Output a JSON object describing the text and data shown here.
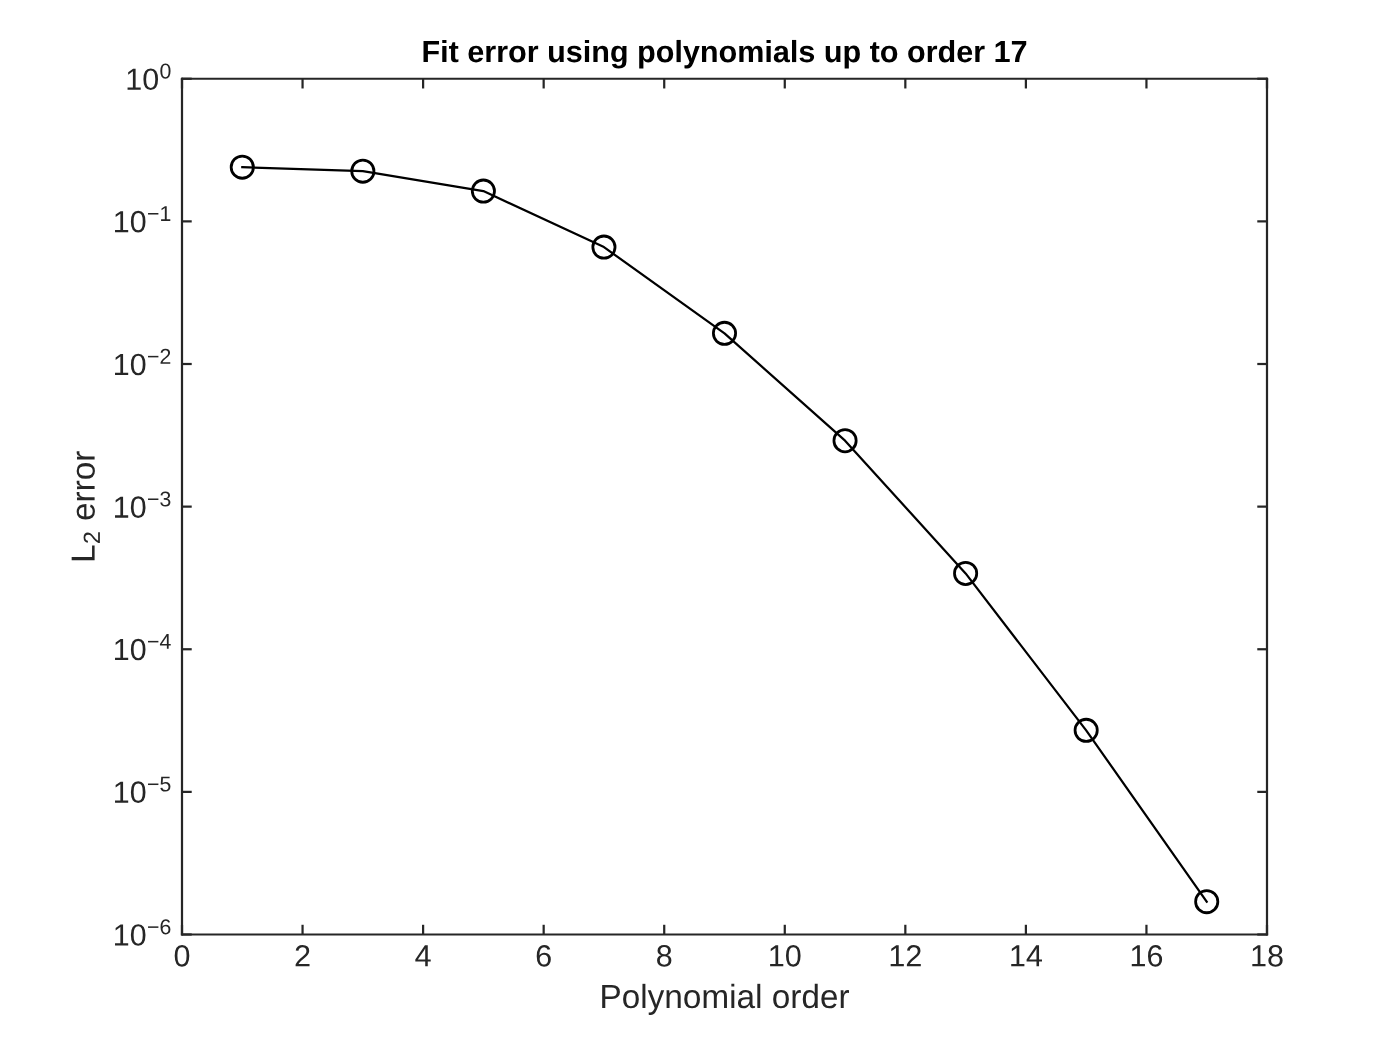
{
  "chart_data": {
    "type": "line",
    "title": "Fit error using polynomials up to order 17",
    "xlabel": "Polynomial order",
    "ylabel": "L$_{2}$ error",
    "x": [
      1,
      3,
      5,
      7,
      9,
      11,
      13,
      15,
      17
    ],
    "series": [
      {
        "color": "#000000",
        "values": [
          0.24,
          0.225,
          0.163,
          0.066,
          0.0164,
          0.0029,
          0.00034,
          2.7e-05,
          1.7e-06
        ]
      }
    ],
    "log": true,
    "xlim": [
      0,
      18
    ],
    "xticks": [
      0,
      2,
      4,
      6,
      8,
      10,
      12,
      14,
      16,
      18
    ],
    "ylim": [
      1e-06,
      1
    ],
    "yticks": [
      {
        "value": 1e-06,
        "label": "10$^{−6}$"
      },
      {
        "value": 1e-05,
        "label": "10$^{−5}$"
      },
      {
        "value": 0.0001,
        "label": "10$^{−4}$"
      },
      {
        "value": 0.001,
        "label": "10$^{−3}$"
      },
      {
        "value": 0.01,
        "label": "10$^{−2}$"
      },
      {
        "value": 0.1,
        "label": "10$^{−1}$"
      },
      {
        "value": 1,
        "label": "10$^{0}$"
      }
    ],
    "marker": "circle",
    "line_style": "solid"
  }
}
